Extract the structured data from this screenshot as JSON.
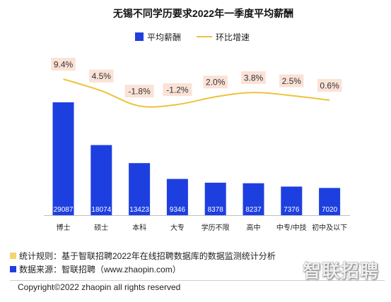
{
  "colors": {
    "bar": "#1E3FE0",
    "line": "#EFC23B",
    "label_bg": "#FBE2D6",
    "baseline": "#BFBFBF",
    "note_rule": "#F6D46B",
    "note_source": "#1E3FE0"
  },
  "chart_data": {
    "type": "bar",
    "title": "无锡不同学历要求2022年一季度平均薪酬",
    "categories": [
      "博士",
      "硕士",
      "本科",
      "大专",
      "学历不限",
      "高中",
      "中专/中技",
      "初中及以下"
    ],
    "series": [
      {
        "name": "平均薪酬",
        "type": "bar",
        "values": [
          29087,
          18074,
          13423,
          9346,
          8378,
          8237,
          7376,
          7020
        ]
      },
      {
        "name": "环比增速",
        "type": "line",
        "unit": "%",
        "values": [
          9.4,
          4.5,
          -1.8,
          -1.2,
          2.0,
          3.8,
          2.5,
          0.6
        ]
      }
    ],
    "legend": "top-center",
    "grid": false
  },
  "footer": {
    "rule": "统计规则：基于智联招聘2022年在线招聘数据库的数据监测统计分析",
    "source": "数据来源：智联招聘（www.zhaopin.com）",
    "copyright": "Copyright©2022 zhaopin all rights reserved"
  },
  "watermark": "智联招聘"
}
